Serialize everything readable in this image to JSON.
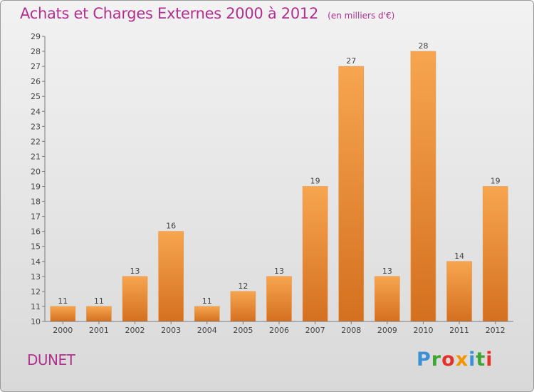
{
  "header": {
    "title": "Achats et Charges Externes 2000 à 2012",
    "unit": "(en milliers d'€)"
  },
  "footer": {
    "commune": "DUNET",
    "logo_letters": [
      "P",
      "r",
      "o",
      "x",
      "i",
      "t",
      "i"
    ],
    "logo_colors": [
      "#3a8fd6",
      "#3fa535",
      "#e4322b",
      "#f29400",
      "#3a8fd6",
      "#3fa535",
      "#e4322b"
    ]
  },
  "chart_data": {
    "type": "bar",
    "title": "Achats et Charges Externes 2000 à 2012",
    "subtitle": "(en milliers d'€)",
    "categories": [
      "2000",
      "2001",
      "2002",
      "2003",
      "2004",
      "2005",
      "2006",
      "2007",
      "2008",
      "2009",
      "2010",
      "2011",
      "2012"
    ],
    "values": [
      11,
      11,
      13,
      16,
      11,
      12,
      13,
      19,
      27,
      13,
      28,
      14,
      19
    ],
    "xlabel": "",
    "ylabel": "",
    "ylim": [
      10,
      29
    ],
    "ytick_step": 1,
    "grid": false,
    "bar_color_top": "#f7a54f",
    "bar_color_bottom": "#d4701f"
  }
}
